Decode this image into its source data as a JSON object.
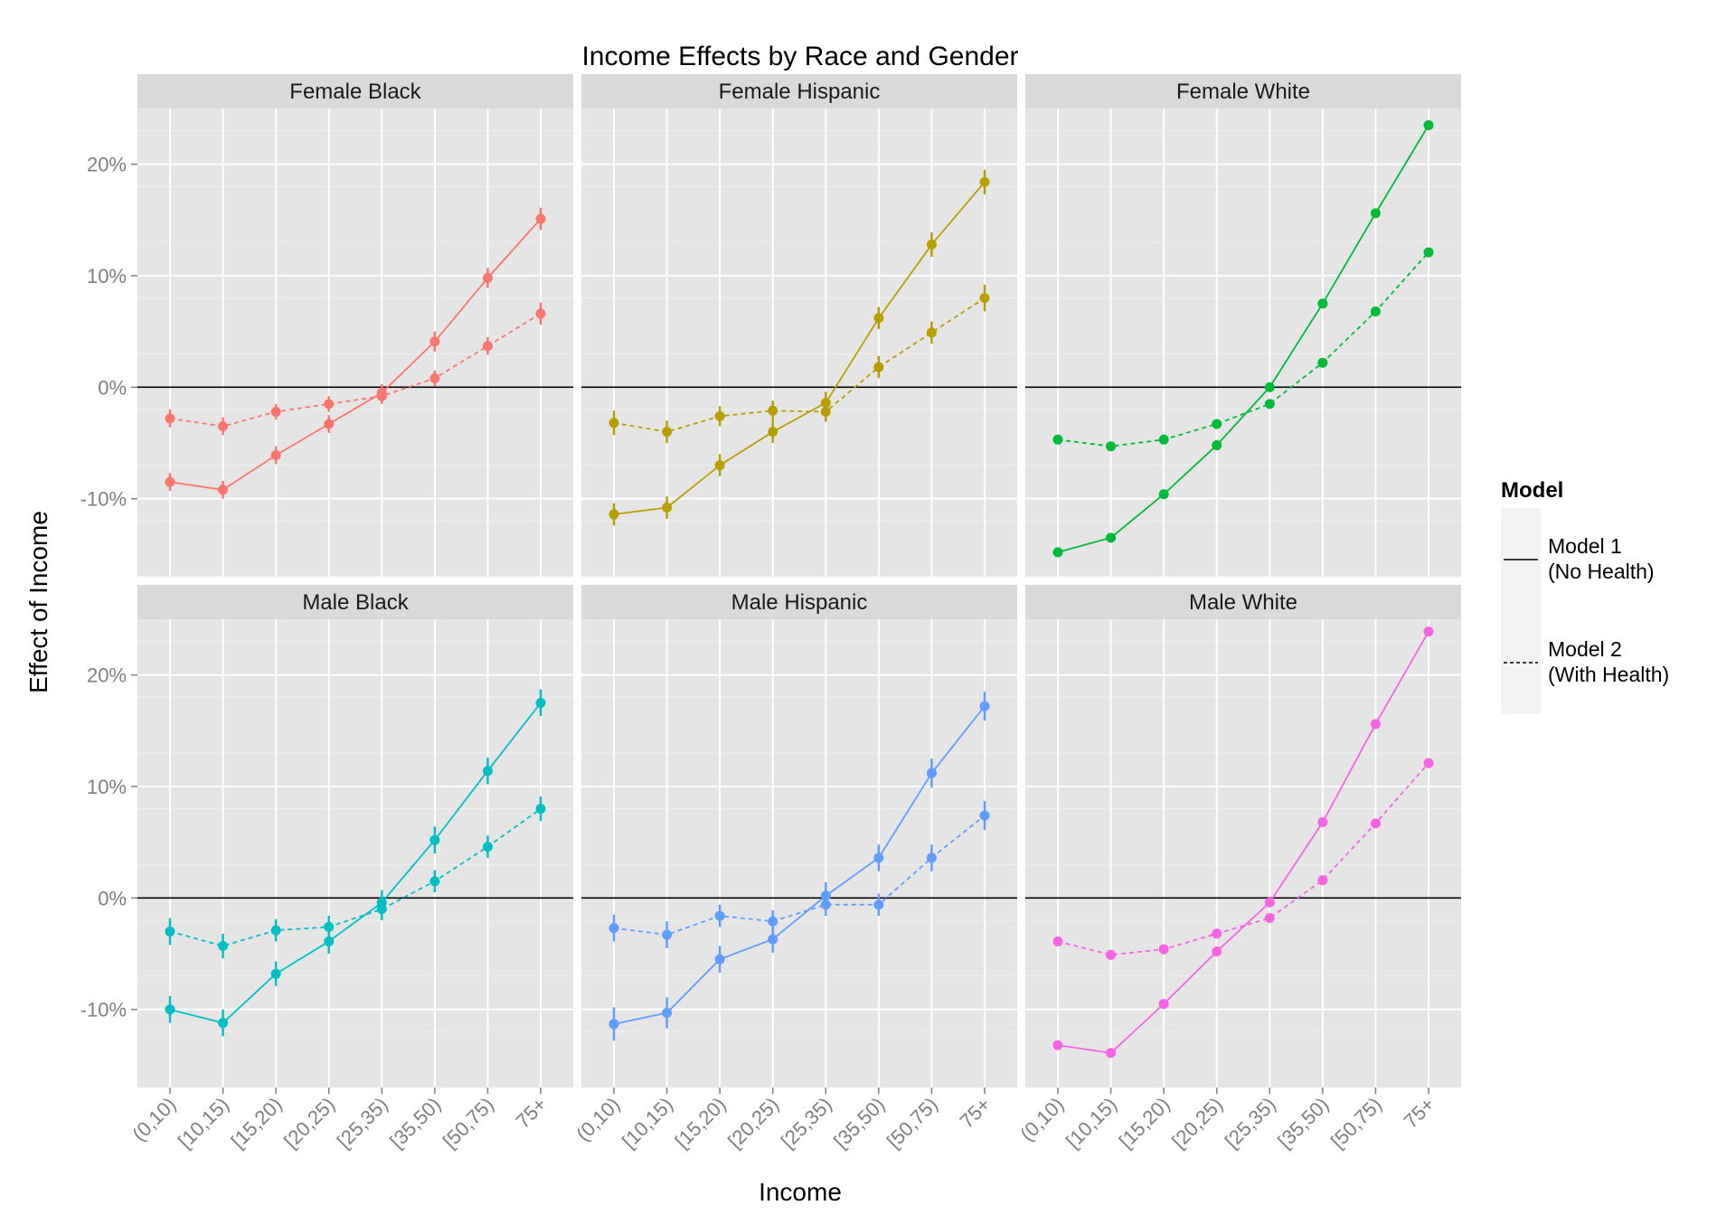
{
  "chart_data": {
    "type": "line",
    "title": "Income Effects by Race and Gender",
    "xlabel": "Income",
    "ylabel": "Effect of Income",
    "categories": [
      "(0,10)",
      "[10,15)",
      "[15,20)",
      "[20,25)",
      "[25,35)",
      "[35,50)",
      "[50,75)",
      "75+"
    ],
    "ylim": [
      -17,
      25
    ],
    "yticks": [
      -10,
      0,
      10,
      20
    ],
    "ytick_labels": [
      "-10%",
      "0%",
      "10%",
      "20%"
    ],
    "grid": true,
    "reference_line_y": 0,
    "legend": {
      "title": "Model",
      "position": "right",
      "entries": [
        {
          "label_line1": "Model 1",
          "label_line2": "(No Health)",
          "linetype": "solid"
        },
        {
          "label_line1": "Model 2",
          "label_line2": "(With Health)",
          "linetype": "dashed"
        }
      ]
    },
    "facets": [
      {
        "label": "Female Black",
        "color": "#F8766D",
        "model1": [
          -8.5,
          -9.2,
          -6.1,
          -3.3,
          -0.5,
          4.1,
          9.8,
          15.1
        ],
        "model1_err": [
          0.8,
          0.8,
          0.8,
          0.8,
          0.8,
          0.9,
          0.9,
          1.0
        ],
        "model2": [
          -2.8,
          -3.5,
          -2.2,
          -1.5,
          -0.8,
          0.8,
          3.7,
          6.6
        ],
        "model2_err": [
          0.8,
          0.8,
          0.7,
          0.7,
          0.7,
          0.7,
          0.8,
          1.0
        ]
      },
      {
        "label": "Female Hispanic",
        "color": "#B79F00",
        "model1": [
          -11.4,
          -10.8,
          -7.0,
          -4.0,
          -1.4,
          6.2,
          12.8,
          18.4
        ],
        "model1_err": [
          1.0,
          1.0,
          1.0,
          1.0,
          1.0,
          1.0,
          1.1,
          1.1
        ],
        "model2": [
          -3.2,
          -4.0,
          -2.6,
          -2.1,
          -2.2,
          1.8,
          4.9,
          8.0
        ],
        "model2_err": [
          1.1,
          1.0,
          0.9,
          0.9,
          0.9,
          1.0,
          1.0,
          1.2
        ]
      },
      {
        "label": "Female White",
        "color": "#00BA38",
        "model1": [
          -14.8,
          -13.5,
          -9.6,
          -5.2,
          0.0,
          7.5,
          15.6,
          23.5
        ],
        "model1_err": [
          0.3,
          0.3,
          0.3,
          0.3,
          0.3,
          0.3,
          0.3,
          0.3
        ],
        "model2": [
          -4.7,
          -5.3,
          -4.7,
          -3.3,
          -1.5,
          2.2,
          6.8,
          12.1
        ],
        "model2_err": [
          0.3,
          0.3,
          0.3,
          0.3,
          0.3,
          0.3,
          0.3,
          0.3
        ]
      },
      {
        "label": "Male Black",
        "color": "#00BFC4",
        "model1": [
          -10.0,
          -11.2,
          -6.8,
          -3.9,
          -0.4,
          5.2,
          11.4,
          17.5
        ],
        "model1_err": [
          1.2,
          1.2,
          1.1,
          1.1,
          1.1,
          1.2,
          1.2,
          1.2
        ],
        "model2": [
          -3.0,
          -4.3,
          -2.9,
          -2.6,
          -1.0,
          1.5,
          4.6,
          8.0
        ],
        "model2_err": [
          1.2,
          1.1,
          1.0,
          1.0,
          1.0,
          1.0,
          1.0,
          1.1
        ]
      },
      {
        "label": "Male Hispanic",
        "color": "#619CFF",
        "model1": [
          -11.3,
          -10.3,
          -5.5,
          -3.7,
          0.2,
          3.6,
          11.2,
          17.2
        ],
        "model1_err": [
          1.5,
          1.4,
          1.2,
          1.2,
          1.2,
          1.2,
          1.3,
          1.3
        ],
        "model2": [
          -2.7,
          -3.3,
          -1.6,
          -2.1,
          -0.6,
          -0.6,
          3.6,
          7.4
        ],
        "model2_err": [
          1.2,
          1.2,
          1.0,
          1.0,
          1.0,
          1.0,
          1.2,
          1.3
        ]
      },
      {
        "label": "Male White",
        "color": "#F564E3",
        "model1": [
          -13.2,
          -13.9,
          -9.5,
          -4.8,
          -0.4,
          6.8,
          15.6,
          23.9
        ],
        "model1_err": [
          0.4,
          0.3,
          0.3,
          0.3,
          0.3,
          0.3,
          0.3,
          0.3
        ],
        "model2": [
          -3.9,
          -5.1,
          -4.6,
          -3.2,
          -1.8,
          1.6,
          6.7,
          12.1
        ],
        "model2_err": [
          0.4,
          0.3,
          0.3,
          0.3,
          0.3,
          0.3,
          0.3,
          0.3
        ]
      }
    ]
  }
}
